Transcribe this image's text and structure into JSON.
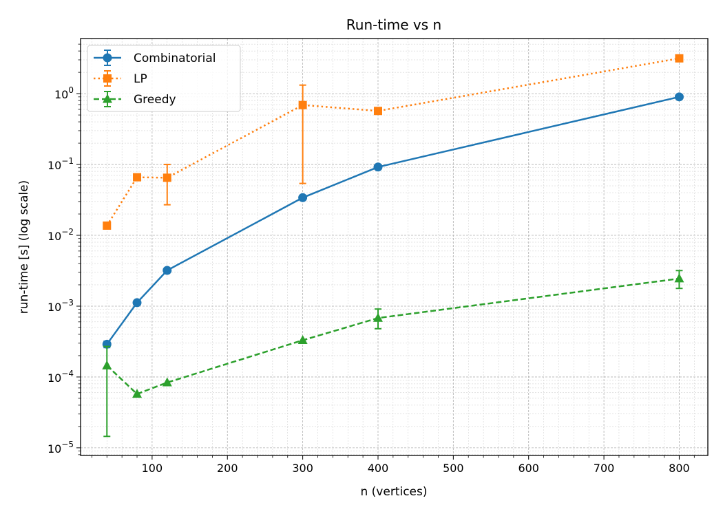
{
  "chart_data": {
    "type": "line",
    "title": "Run-time vs n",
    "xlabel": "n (vertices)",
    "ylabel": "run-time [s]  (log scale)",
    "xlim": [
      5,
      838
    ],
    "ylim": [
      7.8e-06,
      6
    ],
    "yscale": "log",
    "grid": "on (major and minor)",
    "legend_position": "top-left",
    "xticks": [
      100,
      200,
      300,
      400,
      500,
      600,
      700,
      800
    ],
    "yticks": [
      1e-05,
      0.0001,
      0.001,
      0.01,
      0.1,
      1
    ],
    "ytick_labels": [
      {
        "base": "10",
        "exp": "−5"
      },
      {
        "base": "10",
        "exp": "−4"
      },
      {
        "base": "10",
        "exp": "−3"
      },
      {
        "base": "10",
        "exp": "−2"
      },
      {
        "base": "10",
        "exp": "−1"
      },
      {
        "base": "10",
        "exp": "0"
      }
    ],
    "series": [
      {
        "name": "Combinatorial",
        "color": "#1f77b4",
        "marker": "circle",
        "line_style": "solid",
        "x": [
          40,
          80,
          120,
          300,
          400,
          800
        ],
        "y": [
          0.00029,
          0.00112,
          0.0032,
          0.034,
          0.092,
          0.9
        ],
        "err_low": [
          0.00026,
          0.00112,
          0.0032,
          0.034,
          0.092,
          0.9
        ],
        "err_high": [
          0.00032,
          0.00112,
          0.0032,
          0.034,
          0.092,
          0.9
        ]
      },
      {
        "name": "LP",
        "color": "#ff7f0e",
        "marker": "square",
        "line_style": "dotted",
        "x": [
          40,
          80,
          120,
          300,
          400,
          800
        ],
        "y": [
          0.0137,
          0.066,
          0.065,
          0.69,
          0.57,
          3.15
        ],
        "err_low": [
          0.0137,
          0.066,
          0.027,
          0.054,
          0.57,
          3.15
        ],
        "err_high": [
          0.0137,
          0.066,
          0.1,
          1.32,
          0.57,
          3.15
        ]
      },
      {
        "name": "Greedy",
        "color": "#2ca02c",
        "marker": "triangle",
        "line_style": "dashed",
        "x": [
          40,
          80,
          120,
          300,
          400,
          800
        ],
        "y": [
          0.000145,
          5.75e-05,
          8.35e-05,
          0.00033,
          0.00068,
          0.00245
        ],
        "err_low": [
          1.45e-05,
          5.75e-05,
          8.35e-05,
          0.00033,
          0.00048,
          0.00178
        ],
        "err_high": [
          0.00027,
          5.75e-05,
          8.35e-05,
          0.00033,
          0.00091,
          0.00318
        ]
      }
    ]
  }
}
